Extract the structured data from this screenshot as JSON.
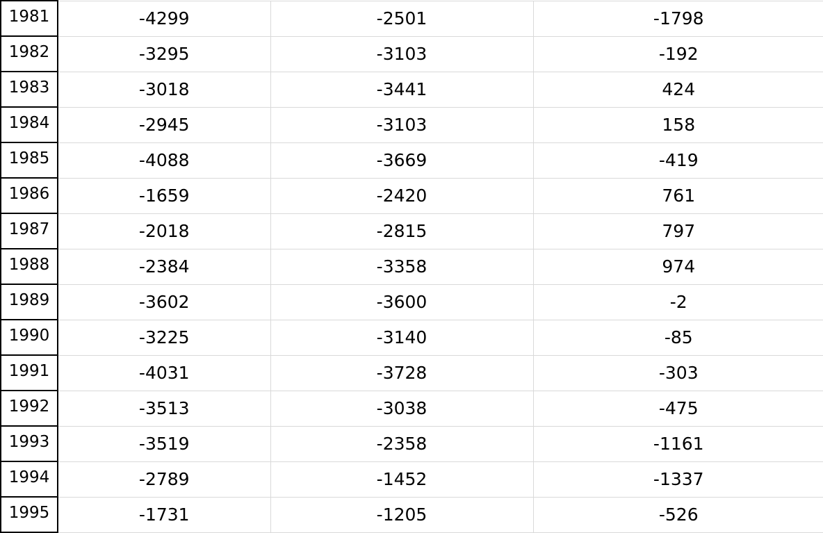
{
  "rows": [
    [
      "1981",
      "-4299",
      "-2501",
      "-1798"
    ],
    [
      "1982",
      "-3295",
      "-3103",
      "-192"
    ],
    [
      "1983",
      "-3018",
      "-3441",
      "424"
    ],
    [
      "1984",
      "-2945",
      "-3103",
      "158"
    ],
    [
      "1985",
      "-4088",
      "-3669",
      "-419"
    ],
    [
      "1986",
      "-1659",
      "-2420",
      "761"
    ],
    [
      "1987",
      "-2018",
      "-2815",
      "797"
    ],
    [
      "1988",
      "-2384",
      "-3358",
      "974"
    ],
    [
      "1989",
      "-3602",
      "-3600",
      "-2"
    ],
    [
      "1990",
      "-3225",
      "-3140",
      "-85"
    ],
    [
      "1991",
      "-4031",
      "-3728",
      "-303"
    ],
    [
      "1992",
      "-3513",
      "-3038",
      "-475"
    ],
    [
      "1993",
      "-3519",
      "-2358",
      "-1161"
    ],
    [
      "1994",
      "-2789",
      "-1452",
      "-1337"
    ],
    [
      "1995",
      "-1731",
      "-1205",
      "-526"
    ]
  ]
}
